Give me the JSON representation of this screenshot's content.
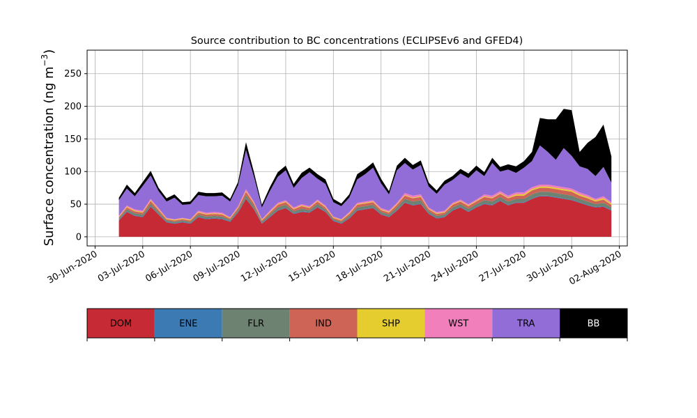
{
  "chart_data": {
    "type": "area",
    "stacked": true,
    "title": "Source contribution to BC concentrations (ECLIPSEv6 and GFED4)",
    "xlabel": "",
    "ylabel": "Surface concentration (ng m",
    "ylabel_sup": "−3",
    "ylabel_close": ")",
    "ylim": [
      -14,
      286
    ],
    "xlim": [
      "2020-06-29T12:00",
      "2020-08-02T12:00"
    ],
    "grid": true,
    "yticks": [
      0,
      50,
      100,
      150,
      200,
      250
    ],
    "ytick_labels": [
      "0",
      "50",
      "100",
      "150",
      "200",
      "250"
    ],
    "xticks": [
      "2020-06-30",
      "2020-07-03",
      "2020-07-06",
      "2020-07-09",
      "2020-07-12",
      "2020-07-15",
      "2020-07-18",
      "2020-07-21",
      "2020-07-24",
      "2020-07-27",
      "2020-07-30",
      "2020-08-02"
    ],
    "xtick_labels": [
      "30-Jun-2020",
      "03-Jul-2020",
      "06-Jul-2020",
      "09-Jul-2020",
      "12-Jul-2020",
      "15-Jul-2020",
      "18-Jul-2020",
      "21-Jul-2020",
      "24-Jul-2020",
      "27-Jul-2020",
      "30-Jul-2020",
      "02-Aug-2020"
    ],
    "x": [
      "2020-07-01T12:00",
      "2020-07-02T00:00",
      "2020-07-02T12:00",
      "2020-07-03T00:00",
      "2020-07-03T12:00",
      "2020-07-04T00:00",
      "2020-07-04T12:00",
      "2020-07-05T00:00",
      "2020-07-05T12:00",
      "2020-07-06T00:00",
      "2020-07-06T12:00",
      "2020-07-07T00:00",
      "2020-07-07T12:00",
      "2020-07-08T00:00",
      "2020-07-08T12:00",
      "2020-07-09T00:00",
      "2020-07-09T12:00",
      "2020-07-10T00:00",
      "2020-07-10T12:00",
      "2020-07-11T00:00",
      "2020-07-11T12:00",
      "2020-07-12T00:00",
      "2020-07-12T12:00",
      "2020-07-13T00:00",
      "2020-07-13T12:00",
      "2020-07-14T00:00",
      "2020-07-14T12:00",
      "2020-07-15T00:00",
      "2020-07-15T12:00",
      "2020-07-16T00:00",
      "2020-07-16T12:00",
      "2020-07-17T00:00",
      "2020-07-17T12:00",
      "2020-07-18T00:00",
      "2020-07-18T12:00",
      "2020-07-19T00:00",
      "2020-07-19T12:00",
      "2020-07-20T00:00",
      "2020-07-20T12:00",
      "2020-07-21T00:00",
      "2020-07-21T12:00",
      "2020-07-22T00:00",
      "2020-07-22T12:00",
      "2020-07-23T00:00",
      "2020-07-23T12:00",
      "2020-07-24T00:00",
      "2020-07-24T12:00",
      "2020-07-25T00:00",
      "2020-07-25T12:00",
      "2020-07-26T00:00",
      "2020-07-26T12:00",
      "2020-07-27T00:00",
      "2020-07-27T12:00",
      "2020-07-28T00:00",
      "2020-07-28T12:00",
      "2020-07-29T00:00",
      "2020-07-29T12:00",
      "2020-07-30T00:00",
      "2020-07-30T12:00",
      "2020-07-31T00:00",
      "2020-07-31T12:00",
      "2020-08-01T00:00",
      "2020-08-01T12:00"
    ],
    "series": [
      {
        "name": "DOM",
        "color": "#c52a35",
        "values": [
          25,
          38,
          32,
          30,
          46,
          34,
          22,
          20,
          22,
          20,
          30,
          27,
          28,
          27,
          23,
          37,
          58,
          42,
          20,
          30,
          40,
          44,
          35,
          38,
          37,
          45,
          38,
          24,
          20,
          28,
          40,
          42,
          44,
          34,
          30,
          40,
          52,
          48,
          50,
          35,
          28,
          30,
          40,
          45,
          38,
          45,
          50,
          48,
          55,
          48,
          52,
          52,
          58,
          62,
          62,
          60,
          58,
          56,
          52,
          48,
          45,
          46,
          40
        ]
      },
      {
        "name": "ENE",
        "color": "#3c7ab3",
        "values": [
          1,
          1,
          1,
          1,
          1,
          1,
          1,
          1,
          1,
          1,
          1,
          1,
          1,
          1,
          1,
          1,
          1,
          1,
          1,
          1,
          1,
          1,
          1,
          1,
          1,
          1,
          1,
          1,
          1,
          1,
          1,
          1,
          1,
          1,
          1,
          1,
          1,
          1,
          1,
          1,
          1,
          1,
          1,
          1,
          1,
          1,
          1,
          1,
          1,
          1,
          1,
          1,
          1,
          1,
          1,
          1,
          1,
          1,
          1,
          1,
          1,
          1,
          1
        ]
      },
      {
        "name": "FLR",
        "color": "#6e8272",
        "values": [
          2,
          3,
          3,
          3,
          4,
          3,
          2,
          2,
          2,
          2,
          3,
          3,
          3,
          3,
          2,
          3,
          5,
          4,
          2,
          3,
          4,
          4,
          3,
          4,
          3,
          4,
          3,
          2,
          2,
          3,
          4,
          4,
          4,
          3,
          3,
          4,
          5,
          5,
          5,
          3,
          3,
          3,
          4,
          4,
          4,
          4,
          5,
          5,
          5,
          5,
          5,
          5,
          6,
          6,
          6,
          6,
          6,
          6,
          5,
          5,
          4,
          5,
          4
        ]
      },
      {
        "name": "IND",
        "color": "#cd6456",
        "values": [
          2,
          3,
          3,
          3,
          4,
          3,
          2,
          2,
          2,
          2,
          3,
          3,
          3,
          3,
          2,
          3,
          5,
          4,
          2,
          3,
          4,
          4,
          3,
          4,
          3,
          4,
          3,
          2,
          2,
          3,
          4,
          4,
          4,
          3,
          3,
          4,
          5,
          5,
          5,
          3,
          3,
          3,
          4,
          4,
          4,
          4,
          5,
          5,
          5,
          5,
          5,
          5,
          6,
          6,
          6,
          6,
          6,
          6,
          5,
          5,
          4,
          5,
          4
        ]
      },
      {
        "name": "SHP",
        "color": "#e5cd2f",
        "values": [
          1,
          1,
          1,
          1,
          1,
          1,
          1,
          1,
          1,
          1,
          1,
          1,
          1,
          1,
          1,
          1,
          1,
          1,
          1,
          1,
          1,
          1,
          1,
          1,
          1,
          1,
          1,
          1,
          1,
          1,
          1,
          1,
          1,
          1,
          1,
          1,
          1,
          1,
          1,
          1,
          1,
          1,
          1,
          1,
          1,
          1,
          1,
          1,
          1,
          1,
          2,
          2,
          2,
          2,
          2,
          2,
          2,
          2,
          2,
          2,
          2,
          2,
          2
        ]
      },
      {
        "name": "WST",
        "color": "#f07fbc",
        "values": [
          1,
          2,
          2,
          2,
          2,
          2,
          1,
          1,
          1,
          1,
          2,
          2,
          2,
          2,
          1,
          2,
          3,
          2,
          1,
          2,
          2,
          2,
          2,
          2,
          2,
          2,
          2,
          1,
          1,
          2,
          2,
          2,
          2,
          2,
          2,
          2,
          3,
          3,
          3,
          2,
          2,
          2,
          2,
          2,
          2,
          2,
          3,
          3,
          3,
          3,
          3,
          3,
          3,
          3,
          3,
          3,
          3,
          3,
          3,
          3,
          2,
          3,
          2
        ]
      },
      {
        "name": "TRA",
        "color": "#926dd8",
        "values": [
          24,
          26,
          20,
          38,
          36,
          26,
          25,
          33,
          20,
          23,
          24,
          25,
          24,
          26,
          24,
          32,
          60,
          38,
          18,
          30,
          40,
          46,
          30,
          40,
          52,
          32,
          33,
          22,
          20,
          22,
          36,
          42,
          50,
          38,
          25,
          50,
          46,
          40,
          45,
          32,
          28,
          40,
          35,
          40,
          40,
          45,
          28,
          50,
          30,
          40,
          30,
          38,
          40,
          60,
          50,
          40,
          60,
          50,
          40,
          40,
          35,
          45,
          30
        ]
      },
      {
        "name": "BB",
        "color": "#000000",
        "values": [
          4,
          6,
          5,
          6,
          7,
          5,
          5,
          5,
          4,
          4,
          5,
          5,
          5,
          5,
          4,
          5,
          12,
          7,
          4,
          6,
          7,
          7,
          6,
          8,
          7,
          7,
          7,
          5,
          4,
          5,
          8,
          8,
          8,
          7,
          5,
          7,
          8,
          7,
          7,
          6,
          5,
          6,
          6,
          7,
          7,
          7,
          6,
          8,
          7,
          8,
          10,
          10,
          14,
          42,
          50,
          62,
          60,
          70,
          22,
          40,
          60,
          65,
          40
        ]
      }
    ]
  },
  "legend": {
    "items": [
      {
        "label": "DOM",
        "color": "#c52a35",
        "text_color": "#000000"
      },
      {
        "label": "ENE",
        "color": "#3c7ab3",
        "text_color": "#000000"
      },
      {
        "label": "FLR",
        "color": "#6e8272",
        "text_color": "#000000"
      },
      {
        "label": "IND",
        "color": "#cd6456",
        "text_color": "#000000"
      },
      {
        "label": "SHP",
        "color": "#e5cd2f",
        "text_color": "#000000"
      },
      {
        "label": "WST",
        "color": "#f07fbc",
        "text_color": "#000000"
      },
      {
        "label": "TRA",
        "color": "#926dd8",
        "text_color": "#000000"
      },
      {
        "label": "BB",
        "color": "#000000",
        "text_color": "#ffffff"
      }
    ]
  }
}
